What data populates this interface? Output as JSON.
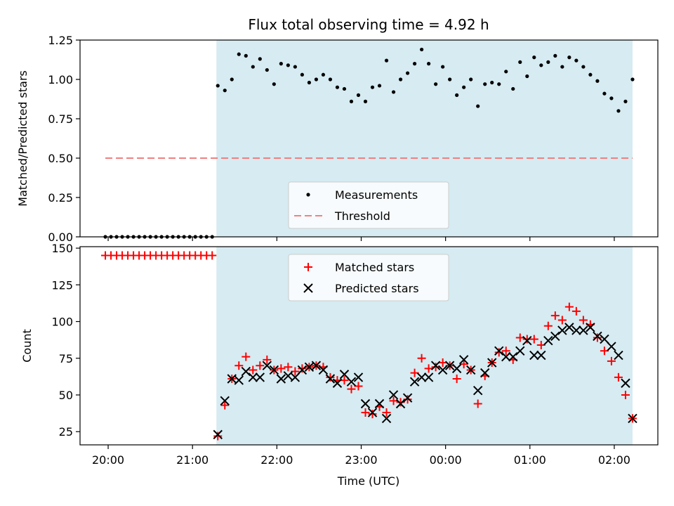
{
  "chart_data": {
    "title": "Flux total observing time = 4.92 h",
    "type": "scatter",
    "time_axis": {
      "label": "Time (UTC)",
      "ticks": [
        "20:00",
        "21:00",
        "22:00",
        "23:00",
        "00:00",
        "01:00",
        "02:00"
      ],
      "range": [
        "19:40",
        "02:31"
      ]
    },
    "observing_window": {
      "start": "21:17",
      "end": "02:13",
      "color": "#add8e6"
    },
    "panels": [
      {
        "id": "ratio",
        "ylabel": "Matched/Predicted stars",
        "ylim": [
          0.0,
          1.25
        ],
        "yticks": [
          "0.00",
          "0.25",
          "0.50",
          "0.75",
          "1.00",
          "1.25"
        ],
        "legend": {
          "placement": "lower center"
        },
        "series": [
          {
            "name": "Measurements",
            "kind": "scatter",
            "marker": "dot",
            "color": "#000000",
            "points": [
              [
                "19:58",
                0.0
              ],
              [
                "20:02",
                0.0
              ],
              [
                "20:06",
                0.0
              ],
              [
                "20:10",
                0.0
              ],
              [
                "20:14",
                0.0
              ],
              [
                "20:18",
                0.0
              ],
              [
                "20:22",
                0.0
              ],
              [
                "20:26",
                0.0
              ],
              [
                "20:30",
                0.0
              ],
              [
                "20:34",
                0.0
              ],
              [
                "20:38",
                0.0
              ],
              [
                "20:42",
                0.0
              ],
              [
                "20:46",
                0.0
              ],
              [
                "20:50",
                0.0
              ],
              [
                "20:54",
                0.0
              ],
              [
                "20:58",
                0.0
              ],
              [
                "21:02",
                0.0
              ],
              [
                "21:06",
                0.0
              ],
              [
                "21:10",
                0.0
              ],
              [
                "21:14",
                0.0
              ],
              [
                "21:18",
                0.96
              ],
              [
                "21:23",
                0.93
              ],
              [
                "21:28",
                1.0
              ],
              [
                "21:33",
                1.16
              ],
              [
                "21:38",
                1.15
              ],
              [
                "21:43",
                1.08
              ],
              [
                "21:48",
                1.13
              ],
              [
                "21:53",
                1.06
              ],
              [
                "21:58",
                0.97
              ],
              [
                "22:03",
                1.1
              ],
              [
                "22:08",
                1.09
              ],
              [
                "22:13",
                1.08
              ],
              [
                "22:18",
                1.03
              ],
              [
                "22:23",
                0.98
              ],
              [
                "22:28",
                1.0
              ],
              [
                "22:33",
                1.03
              ],
              [
                "22:38",
                1.0
              ],
              [
                "22:43",
                0.95
              ],
              [
                "22:48",
                0.94
              ],
              [
                "22:53",
                0.86
              ],
              [
                "22:58",
                0.9
              ],
              [
                "23:03",
                0.86
              ],
              [
                "23:08",
                0.95
              ],
              [
                "23:13",
                0.96
              ],
              [
                "23:18",
                1.12
              ],
              [
                "23:23",
                0.92
              ],
              [
                "23:28",
                1.0
              ],
              [
                "23:33",
                1.04
              ],
              [
                "23:38",
                1.1
              ],
              [
                "23:43",
                1.19
              ],
              [
                "23:48",
                1.1
              ],
              [
                "23:53",
                0.97
              ],
              [
                "23:58",
                1.08
              ],
              [
                "00:03",
                1.0
              ],
              [
                "00:08",
                0.9
              ],
              [
                "00:13",
                0.95
              ],
              [
                "00:18",
                1.0
              ],
              [
                "00:23",
                0.83
              ],
              [
                "00:28",
                0.97
              ],
              [
                "00:33",
                0.98
              ],
              [
                "00:38",
                0.97
              ],
              [
                "00:43",
                1.05
              ],
              [
                "00:48",
                0.94
              ],
              [
                "00:53",
                1.11
              ],
              [
                "00:58",
                1.02
              ],
              [
                "01:03",
                1.14
              ],
              [
                "01:08",
                1.09
              ],
              [
                "01:13",
                1.11
              ],
              [
                "01:18",
                1.15
              ],
              [
                "01:23",
                1.08
              ],
              [
                "01:28",
                1.14
              ],
              [
                "01:33",
                1.12
              ],
              [
                "01:38",
                1.08
              ],
              [
                "01:43",
                1.03
              ],
              [
                "01:48",
                0.99
              ],
              [
                "01:53",
                0.91
              ],
              [
                "01:58",
                0.88
              ],
              [
                "02:03",
                0.8
              ],
              [
                "02:08",
                0.86
              ],
              [
                "02:13",
                1.0
              ]
            ]
          },
          {
            "name": "Threshold",
            "kind": "hline",
            "style": "dashed",
            "color": "#f08080",
            "y": 0.5,
            "x_range": [
              "19:58",
              "02:13"
            ]
          }
        ]
      },
      {
        "id": "counts",
        "ylabel": "Count",
        "ylim": [
          16,
          151
        ],
        "yticks": [
          "25",
          "50",
          "75",
          "100",
          "125",
          "150"
        ],
        "legend": {
          "placement": "upper center"
        },
        "series": [
          {
            "name": "Matched stars",
            "kind": "scatter",
            "marker": "plus",
            "color": "#ff0000",
            "points": [
              [
                "19:58",
                145
              ],
              [
                "20:02",
                145
              ],
              [
                "20:06",
                145
              ],
              [
                "20:10",
                145
              ],
              [
                "20:14",
                145
              ],
              [
                "20:18",
                145
              ],
              [
                "20:22",
                145
              ],
              [
                "20:26",
                145
              ],
              [
                "20:30",
                145
              ],
              [
                "20:34",
                145
              ],
              [
                "20:38",
                145
              ],
              [
                "20:42",
                145
              ],
              [
                "20:46",
                145
              ],
              [
                "20:50",
                145
              ],
              [
                "20:54",
                145
              ],
              [
                "20:58",
                145
              ],
              [
                "21:02",
                145
              ],
              [
                "21:06",
                145
              ],
              [
                "21:10",
                145
              ],
              [
                "21:14",
                145
              ],
              [
                "21:18",
                22
              ],
              [
                "21:23",
                43
              ],
              [
                "21:28",
                61
              ],
              [
                "21:33",
                70
              ],
              [
                "21:38",
                76
              ],
              [
                "21:43",
                67
              ],
              [
                "21:48",
                70
              ],
              [
                "21:53",
                74
              ],
              [
                "21:58",
                67
              ],
              [
                "22:03",
                68
              ],
              [
                "22:08",
                69
              ],
              [
                "22:13",
                66
              ],
              [
                "22:18",
                68
              ],
              [
                "22:23",
                69
              ],
              [
                "22:28",
                70
              ],
              [
                "22:33",
                69
              ],
              [
                "22:38",
                62
              ],
              [
                "22:43",
                60
              ],
              [
                "22:48",
                60
              ],
              [
                "22:53",
                54
              ],
              [
                "22:58",
                56
              ],
              [
                "23:03",
                38
              ],
              [
                "23:08",
                37
              ],
              [
                "23:13",
                42
              ],
              [
                "23:18",
                38
              ],
              [
                "23:23",
                46
              ],
              [
                "23:28",
                45
              ],
              [
                "23:33",
                47
              ],
              [
                "23:38",
                65
              ],
              [
                "23:43",
                75
              ],
              [
                "23:48",
                68
              ],
              [
                "23:53",
                69
              ],
              [
                "23:58",
                72
              ],
              [
                "00:03",
                70
              ],
              [
                "00:08",
                61
              ],
              [
                "00:13",
                71
              ],
              [
                "00:18",
                67
              ],
              [
                "00:23",
                44
              ],
              [
                "00:28",
                63
              ],
              [
                "00:33",
                72
              ],
              [
                "00:38",
                79
              ],
              [
                "00:43",
                80
              ],
              [
                "00:48",
                74
              ],
              [
                "00:53",
                89
              ],
              [
                "00:58",
                88
              ],
              [
                "01:03",
                88
              ],
              [
                "01:08",
                84
              ],
              [
                "01:13",
                97
              ],
              [
                "01:18",
                104
              ],
              [
                "01:23",
                101
              ],
              [
                "01:28",
                110
              ],
              [
                "01:33",
                107
              ],
              [
                "01:38",
                101
              ],
              [
                "01:43",
                98
              ],
              [
                "01:48",
                89
              ],
              [
                "01:53",
                80
              ],
              [
                "01:58",
                73
              ],
              [
                "02:03",
                62
              ],
              [
                "02:08",
                50
              ],
              [
                "02:13",
                34
              ]
            ]
          },
          {
            "name": "Predicted stars",
            "kind": "scatter",
            "marker": "x",
            "color": "#000000",
            "points": [
              [
                "21:18",
                23
              ],
              [
                "21:23",
                46
              ],
              [
                "21:28",
                61
              ],
              [
                "21:33",
                60
              ],
              [
                "21:38",
                66
              ],
              [
                "21:43",
                62
              ],
              [
                "21:48",
                62
              ],
              [
                "21:53",
                70
              ],
              [
                "21:58",
                67
              ],
              [
                "22:03",
                61
              ],
              [
                "22:08",
                63
              ],
              [
                "22:13",
                62
              ],
              [
                "22:18",
                67
              ],
              [
                "22:23",
                69
              ],
              [
                "22:28",
                70
              ],
              [
                "22:33",
                67
              ],
              [
                "22:38",
                61
              ],
              [
                "22:43",
                58
              ],
              [
                "22:48",
                64
              ],
              [
                "22:53",
                59
              ],
              [
                "22:58",
                62
              ],
              [
                "23:03",
                44
              ],
              [
                "23:08",
                38
              ],
              [
                "23:13",
                44
              ],
              [
                "23:18",
                34
              ],
              [
                "23:23",
                50
              ],
              [
                "23:28",
                44
              ],
              [
                "23:33",
                48
              ],
              [
                "23:38",
                59
              ],
              [
                "23:43",
                62
              ],
              [
                "23:48",
                62
              ],
              [
                "23:53",
                70
              ],
              [
                "23:58",
                67
              ],
              [
                "00:03",
                70
              ],
              [
                "00:08",
                68
              ],
              [
                "00:13",
                74
              ],
              [
                "00:18",
                67
              ],
              [
                "00:23",
                53
              ],
              [
                "00:28",
                65
              ],
              [
                "00:33",
                72
              ],
              [
                "00:38",
                80
              ],
              [
                "00:43",
                76
              ],
              [
                "00:48",
                76
              ],
              [
                "00:53",
                80
              ],
              [
                "00:58",
                87
              ],
              [
                "01:03",
                77
              ],
              [
                "01:08",
                77
              ],
              [
                "01:13",
                87
              ],
              [
                "01:18",
                90
              ],
              [
                "01:23",
                94
              ],
              [
                "01:28",
                96
              ],
              [
                "01:33",
                94
              ],
              [
                "01:38",
                94
              ],
              [
                "01:43",
                96
              ],
              [
                "01:48",
                90
              ],
              [
                "01:53",
                88
              ],
              [
                "01:58",
                83
              ],
              [
                "02:03",
                77
              ],
              [
                "02:08",
                58
              ],
              [
                "02:13",
                34
              ]
            ]
          }
        ]
      }
    ]
  }
}
